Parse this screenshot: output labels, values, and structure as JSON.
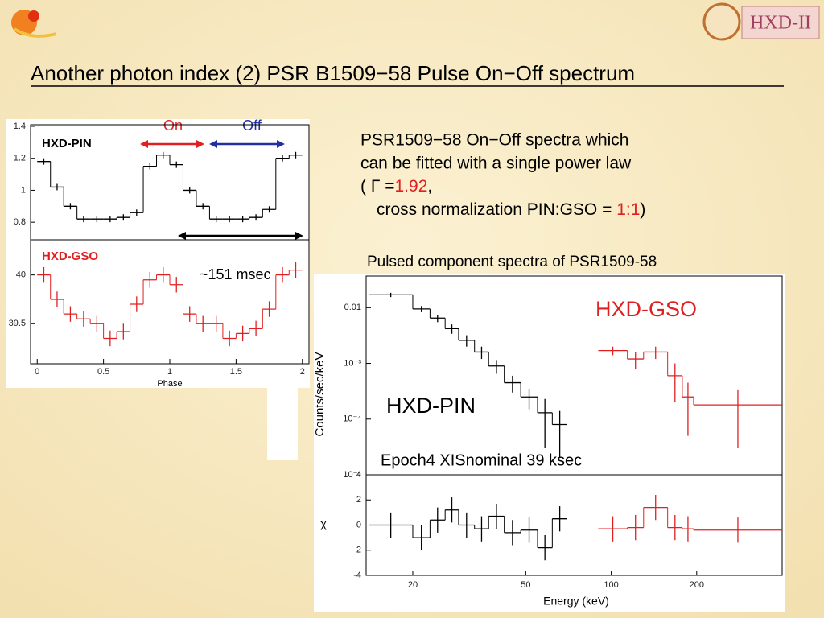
{
  "title": "Another photon index (2)  PSR B1509−58 Pulse On−Off spectrum",
  "description": {
    "line1": "PSR1509−58 On−Off spectra which",
    "line2": "can be fitted with a single power law",
    "gamma_prefix": "( Γ =",
    "gamma": "1.92",
    "gamma_suffix": ",",
    "norm_prefix": "cross normalization PIN:GSO = ",
    "norm": "1:1",
    "norm_suffix": ")"
  },
  "spectrum_caption": "Pulsed component spectra of PSR1509-58",
  "chart_data": [
    {
      "type": "histogram",
      "label": "HXD-PIN",
      "on": "On",
      "off": "Off",
      "color": "#000000",
      "bins": [
        0,
        0.1,
        0.2,
        0.3,
        0.4,
        0.5,
        0.6,
        0.7,
        0.8,
        0.9,
        1.0,
        1.1,
        1.2,
        1.3,
        1.4,
        1.5,
        1.6,
        1.7,
        1.8,
        1.9,
        2.0
      ],
      "values": [
        1.18,
        1.02,
        0.9,
        0.82,
        0.82,
        0.82,
        0.83,
        0.86,
        1.15,
        1.22,
        1.16,
        1.0,
        0.9,
        0.82,
        0.82,
        0.82,
        0.83,
        0.88,
        1.2,
        1.22
      ],
      "errors": [
        0.02,
        0.02,
        0.02,
        0.02,
        0.02,
        0.02,
        0.02,
        0.02,
        0.02,
        0.02,
        0.02,
        0.02,
        0.02,
        0.02,
        0.02,
        0.02,
        0.02,
        0.02,
        0.02,
        0.02
      ],
      "xlim": [
        -0.05,
        2.05
      ],
      "ylim": [
        0.69,
        1.41
      ],
      "yticks": [
        0.8,
        1,
        1.2,
        1.4
      ]
    },
    {
      "type": "histogram",
      "label": "HXD-GSO",
      "annotation": "~151 msec",
      "color": "#e02020",
      "bins": [
        0,
        0.1,
        0.2,
        0.3,
        0.4,
        0.5,
        0.6,
        0.7,
        0.8,
        0.9,
        1.0,
        1.1,
        1.2,
        1.3,
        1.4,
        1.5,
        1.6,
        1.7,
        1.8,
        1.9,
        2.0
      ],
      "values": [
        40.0,
        39.75,
        39.6,
        39.55,
        39.5,
        39.35,
        39.42,
        39.7,
        39.95,
        40.0,
        39.9,
        39.6,
        39.5,
        39.5,
        39.35,
        39.4,
        39.45,
        39.65,
        40.0,
        40.05
      ],
      "errors": [
        0.08,
        0.08,
        0.08,
        0.08,
        0.08,
        0.08,
        0.08,
        0.08,
        0.08,
        0.08,
        0.08,
        0.08,
        0.08,
        0.08,
        0.08,
        0.08,
        0.08,
        0.08,
        0.08,
        0.08
      ],
      "xlim": [
        -0.05,
        2.05
      ],
      "ylim": [
        39.09,
        40.36
      ],
      "yticks": [
        39.5,
        40
      ],
      "xticks": [
        0,
        0.5,
        1,
        1.5,
        2
      ],
      "xlabel": "Phase"
    },
    {
      "type": "histogram",
      "xlog": true,
      "ylog": true,
      "annotation": "Epoch4 XISnominal 39 ksec",
      "ylabel": "Counts/sec/keV",
      "xlim": [
        13.7,
        400
      ],
      "ylim": [
        1e-05,
        0.037
      ],
      "yticks": [
        {
          "value": 0.01,
          "label": "0.01"
        },
        {
          "value": 0.001,
          "label": "10⁻³"
        },
        {
          "value": 0.0001,
          "label": "10⁻⁴"
        },
        {
          "value": 1e-05,
          "label": "10⁻⁵"
        }
      ],
      "series": [
        {
          "name": "HXD-PIN",
          "color": "#000000",
          "bins": [
            14,
            20,
            23,
            26,
            29,
            33,
            37,
            42,
            48,
            55,
            62,
            70
          ],
          "values": [
            0.017,
            0.0095,
            0.0065,
            0.0042,
            0.0026,
            0.0016,
            0.0009,
            0.00045,
            0.00025,
            0.00013,
            8e-05
          ],
          "errors": [
            0.0015,
            0.0012,
            0.001,
            0.0008,
            0.0006,
            0.0004,
            0.00025,
            0.00015,
            0.0001,
            0.0001,
            6e-05
          ]
        },
        {
          "name": "HXD-GSO",
          "color": "#e02020",
          "bins": [
            90,
            114,
            130,
            158,
            178,
            195,
            400
          ],
          "values": [
            0.0017,
            0.0012,
            0.0016,
            0.0006,
            0.00025,
            0.00018
          ],
          "errors": [
            0.0003,
            0.0004,
            0.0004,
            0.0004,
            0.0002,
            0.00015
          ]
        }
      ]
    },
    {
      "type": "histogram",
      "xlog": true,
      "ylabel": "χ",
      "xlabel": "Energy (keV)",
      "xlim": [
        13.7,
        400
      ],
      "ylim": [
        -4,
        4
      ],
      "yticks": [
        -4,
        -2,
        0,
        2,
        4
      ],
      "xticks": [
        20,
        50,
        100,
        200
      ],
      "series": [
        {
          "name": "HXD-PIN",
          "color": "#000000",
          "bins": [
            14,
            20,
            23,
            26,
            29,
            33,
            37,
            42,
            48,
            55,
            62,
            70
          ],
          "values": [
            0,
            -1,
            0.4,
            1.2,
            0,
            -0.3,
            0.7,
            -0.6,
            -0.4,
            -1.8,
            0.5
          ],
          "errors": [
            1,
            1,
            1,
            1,
            1,
            1,
            1,
            1,
            1,
            1,
            1
          ]
        },
        {
          "name": "HXD-GSO",
          "color": "#e02020",
          "bins": [
            90,
            114,
            130,
            158,
            178,
            195,
            400
          ],
          "values": [
            -0.3,
            -0.2,
            1.4,
            -0.2,
            -0.3,
            -0.4
          ],
          "errors": [
            1,
            1,
            1,
            1,
            1,
            1
          ]
        }
      ]
    }
  ]
}
